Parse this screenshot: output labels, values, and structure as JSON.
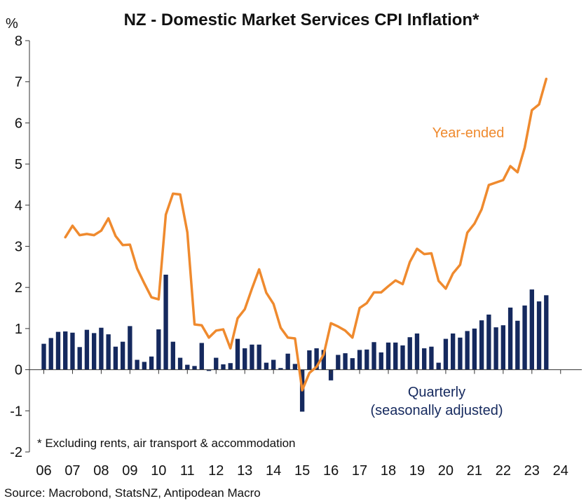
{
  "chart_data": {
    "type": "bar+line",
    "title": "NZ - Domestic Market Services CPI Inflation*",
    "yunit": "%",
    "ylim": [
      -2,
      8
    ],
    "yticks": [
      8,
      7,
      6,
      5,
      4,
      3,
      2,
      1,
      0,
      -1,
      -2
    ],
    "xlim": [
      2006,
      2024.75
    ],
    "xticks": [
      "06",
      "07",
      "08",
      "09",
      "10",
      "11",
      "12",
      "13",
      "14",
      "15",
      "16",
      "17",
      "18",
      "19",
      "20",
      "21",
      "22",
      "23",
      "24"
    ],
    "note": "* Excluding rents, air transport & accommodation",
    "source": "Source: Macrobond, StatsNZ, Antipodean Macro",
    "colors": {
      "year_ended": "#ef8a2e",
      "quarterly": "#15295e"
    },
    "series": [
      {
        "name": "Year-ended",
        "kind": "line",
        "start": 2007.25,
        "values": [
          3.22,
          3.5,
          3.27,
          3.3,
          3.27,
          3.38,
          3.68,
          3.25,
          3.03,
          3.04,
          2.46,
          2.1,
          1.76,
          1.71,
          3.77,
          4.28,
          4.26,
          3.34,
          1.1,
          1.08,
          0.78,
          0.95,
          0.98,
          0.52,
          1.25,
          1.47,
          1.97,
          2.44,
          1.87,
          1.6,
          1.02,
          0.78,
          0.76,
          -0.5,
          -0.08,
          0.07,
          0.37,
          1.13,
          1.05,
          0.95,
          0.78,
          1.5,
          1.62,
          1.88,
          1.88,
          2.03,
          2.17,
          2.08,
          2.62,
          2.94,
          2.81,
          2.83,
          2.16,
          1.97,
          2.34,
          2.55,
          3.33,
          3.55,
          3.9,
          4.49,
          4.55,
          4.61,
          4.95,
          4.8,
          5.4,
          6.31,
          6.45,
          7.07
        ]
      },
      {
        "name": "Quarterly (seasonally adjusted)",
        "label_lines": [
          "Quarterly",
          "(seasonally adjusted)"
        ],
        "kind": "bar",
        "start": 2006.5,
        "values": [
          0.63,
          0.77,
          0.92,
          0.93,
          0.9,
          0.55,
          0.97,
          0.89,
          1.02,
          0.86,
          0.56,
          0.68,
          1.06,
          0.24,
          0.19,
          0.32,
          0.98,
          2.31,
          0.68,
          0.29,
          0.12,
          0.09,
          0.65,
          -0.03,
          0.29,
          0.13,
          0.16,
          0.75,
          0.52,
          0.61,
          0.61,
          0.17,
          0.24,
          0.04,
          0.39,
          0.14,
          -1.02,
          0.47,
          0.52,
          0.48,
          -0.26,
          0.36,
          0.4,
          0.28,
          0.48,
          0.49,
          0.67,
          0.42,
          0.66,
          0.66,
          0.59,
          0.79,
          0.88,
          0.52,
          0.56,
          0.17,
          0.75,
          0.88,
          0.78,
          0.94,
          1.0,
          1.2,
          1.34,
          1.03,
          1.08,
          1.51,
          1.19,
          1.56,
          1.95,
          1.66,
          1.81
        ]
      }
    ]
  }
}
